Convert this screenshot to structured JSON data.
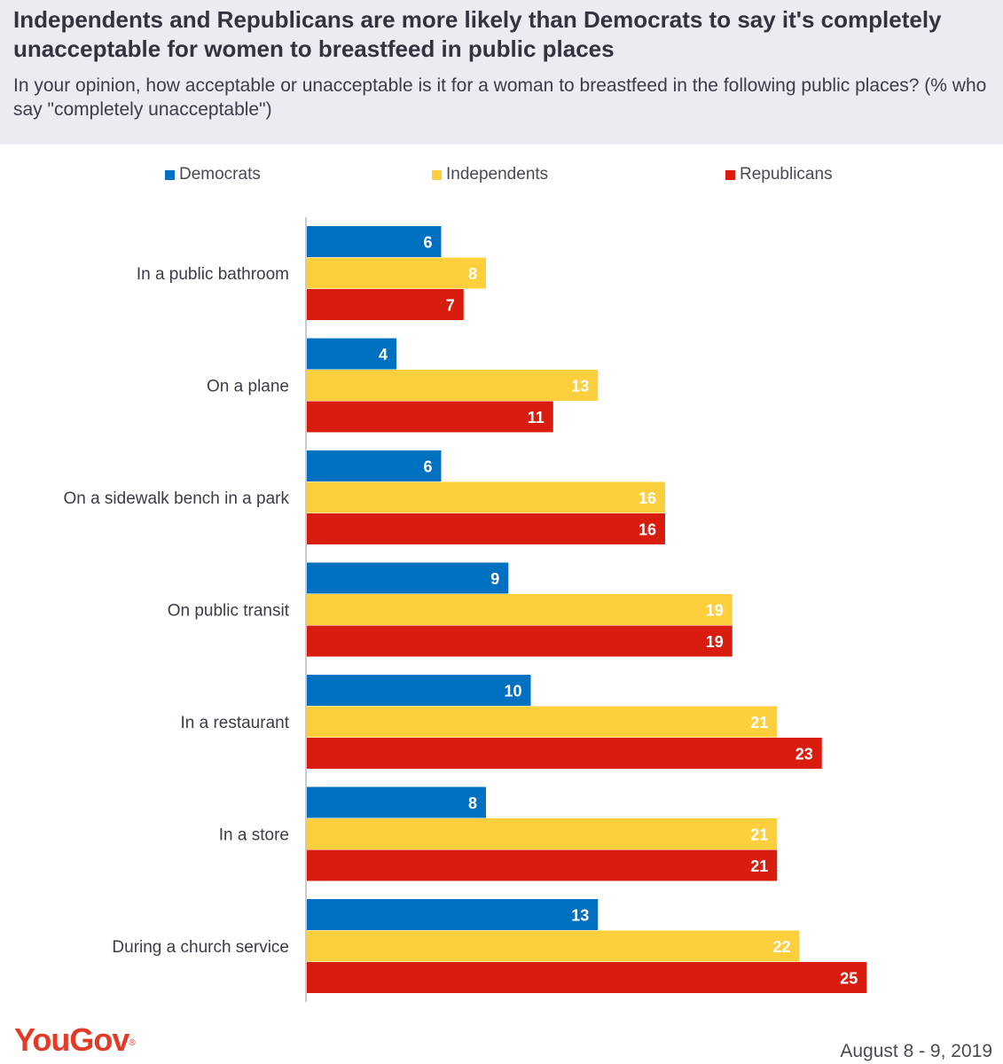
{
  "title": "Independents and Republicans are more likely than Democrats to say it's completely unacceptable for women to breastfeed in public places",
  "subtitle": "In your opinion, how acceptable or unacceptable is it for a woman to breastfeed in the following public places? (% who say \"completely unacceptable\")",
  "footer": {
    "logo_text": "YouGov",
    "logo_mark": "®",
    "date": "August 8 - 9, 2019"
  },
  "colors": {
    "democrats": "#0070c0",
    "independents": "#fecf3c",
    "republicans": "#d81c0e"
  },
  "chart_data": {
    "type": "bar",
    "orientation": "horizontal",
    "categories": [
      "In a public bathroom",
      "On a plane",
      "On a sidewalk bench in a park",
      "On public transit",
      "In a restaurant",
      "In a store",
      "During a church service"
    ],
    "series": [
      {
        "name": "Democrats",
        "color": "#0070c0",
        "values": [
          6,
          4,
          6,
          9,
          10,
          8,
          13
        ]
      },
      {
        "name": "Independents",
        "color": "#fecf3c",
        "values": [
          8,
          13,
          16,
          19,
          21,
          21,
          22
        ]
      },
      {
        "name": "Republicans",
        "color": "#d81c0e",
        "values": [
          7,
          11,
          16,
          19,
          23,
          21,
          25
        ]
      }
    ],
    "xlim": [
      0,
      31
    ],
    "legend_position": "top",
    "data_labels": true,
    "grid": false
  }
}
